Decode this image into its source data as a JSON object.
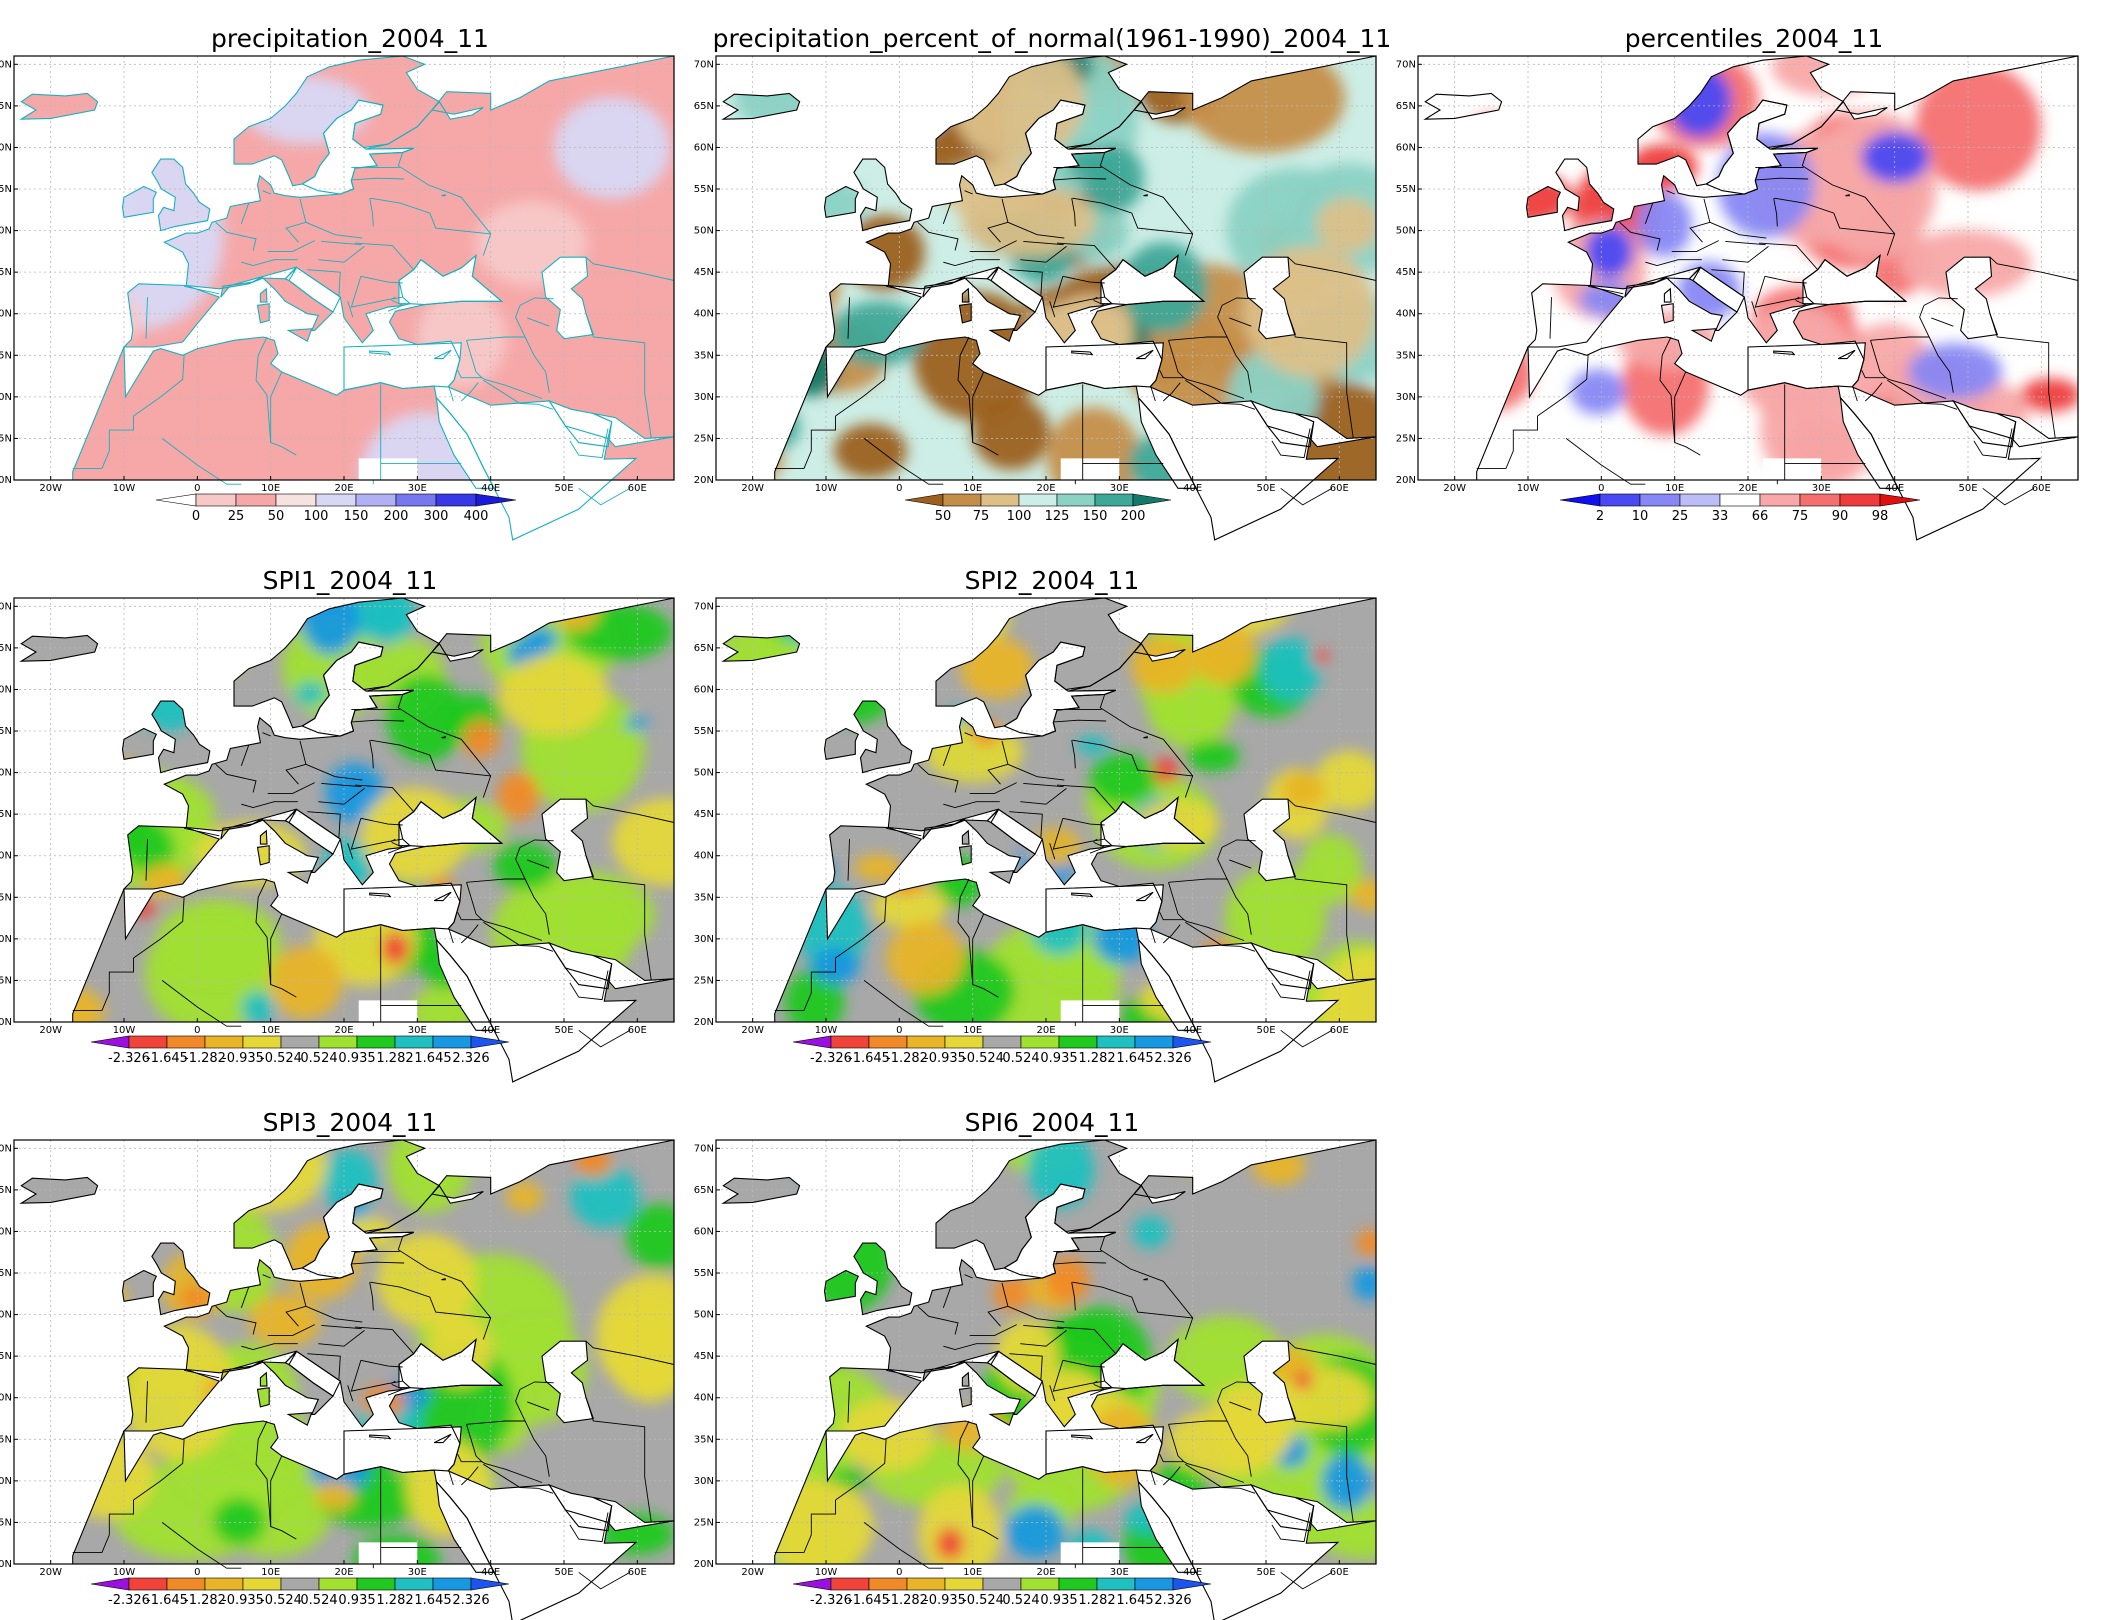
{
  "panels": [
    {
      "id": "p1",
      "title": "precipitation_2004_11",
      "scheme": "precip",
      "colorbar": {
        "labels": [
          "0",
          "25",
          "50",
          "100",
          "150",
          "200",
          "300",
          "400"
        ],
        "colors": [
          "#ffffff",
          "#f7c8c8",
          "#f6a8a8",
          "#f7e2e2",
          "#d8d8f6",
          "#b0b0f3",
          "#7878ee",
          "#3838e6",
          "#1a1ad8"
        ]
      }
    },
    {
      "id": "p2",
      "title": "precipitation_percent_of_normal(1961-1990)_2004_11",
      "scheme": "pct",
      "colorbar": {
        "labels": [
          "50",
          "75",
          "100",
          "125",
          "150",
          "200"
        ],
        "colors": [
          "#9b6020",
          "#c58e48",
          "#dcc088",
          "#cdeee6",
          "#8ad2c4",
          "#3ea898",
          "#137a6a"
        ]
      }
    },
    {
      "id": "p3",
      "title": "percentiles_2004_11",
      "scheme": "perc",
      "colorbar": {
        "labels": [
          "2",
          "10",
          "25",
          "33",
          "66",
          "75",
          "90",
          "98"
        ],
        "colors": [
          "#1010ee",
          "#4a4af2",
          "#8888f4",
          "#bcbcf6",
          "#ffffff",
          "#f8a8a8",
          "#f47070",
          "#ee3c3c",
          "#e01010"
        ]
      }
    },
    {
      "id": "p4",
      "title": "SPI1_2004_11",
      "scheme": "spi",
      "colorbar": {
        "labels": [
          "-2.326",
          "-1.645",
          "-1.282",
          "-0.935",
          "-0.524",
          "0.524",
          "0.935",
          "1.282",
          "1.645",
          "2.326"
        ],
        "colors": [
          "#9a10e0",
          "#f0443a",
          "#f08a28",
          "#e8b428",
          "#e4d838",
          "#a8a8a8",
          "#a0e030",
          "#20c820",
          "#20c0c0",
          "#1898e0",
          "#1c54f0"
        ]
      }
    },
    {
      "id": "p5",
      "title": "SPI2_2004_11",
      "scheme": "spi",
      "colorbar": {
        "labels": [
          "-2.326",
          "-1.645",
          "-1.282",
          "-0.935",
          "-0.524",
          "0.524",
          "0.935",
          "1.282",
          "1.645",
          "2.326"
        ],
        "colors": [
          "#9a10e0",
          "#f0443a",
          "#f08a28",
          "#e8b428",
          "#e4d838",
          "#a8a8a8",
          "#a0e030",
          "#20c820",
          "#20c0c0",
          "#1898e0",
          "#1c54f0"
        ]
      }
    },
    {
      "id": "p6",
      "title": "SPI3_2004_11",
      "scheme": "spi",
      "colorbar": {
        "labels": [
          "-2.326",
          "-1.645",
          "-1.282",
          "-0.935",
          "-0.524",
          "0.524",
          "0.935",
          "1.282",
          "1.645",
          "2.326"
        ],
        "colors": [
          "#9a10e0",
          "#f0443a",
          "#f08a28",
          "#e8b428",
          "#e4d838",
          "#a8a8a8",
          "#a0e030",
          "#20c820",
          "#20c0c0",
          "#1898e0",
          "#1c54f0"
        ]
      }
    },
    {
      "id": "p7",
      "title": "SPI6_2004_11",
      "scheme": "spi",
      "colorbar": {
        "labels": [
          "-2.326",
          "-1.645",
          "-1.282",
          "-0.935",
          "-0.524",
          "0.524",
          "0.935",
          "1.282",
          "1.645",
          "2.326"
        ],
        "colors": [
          "#9a10e0",
          "#f0443a",
          "#f08a28",
          "#e8b428",
          "#e4d838",
          "#a8a8a8",
          "#a0e030",
          "#20c820",
          "#20c0c0",
          "#1898e0",
          "#1c54f0"
        ]
      }
    }
  ],
  "axes": {
    "lat_labels": [
      "70N",
      "65N",
      "60N",
      "55N",
      "50N",
      "45N",
      "40N",
      "35N",
      "30N",
      "25N",
      "20N"
    ],
    "lon_labels": [
      "20W",
      "10W",
      "0",
      "10E",
      "20E",
      "30E",
      "40E",
      "50E",
      "60E"
    ]
  }
}
